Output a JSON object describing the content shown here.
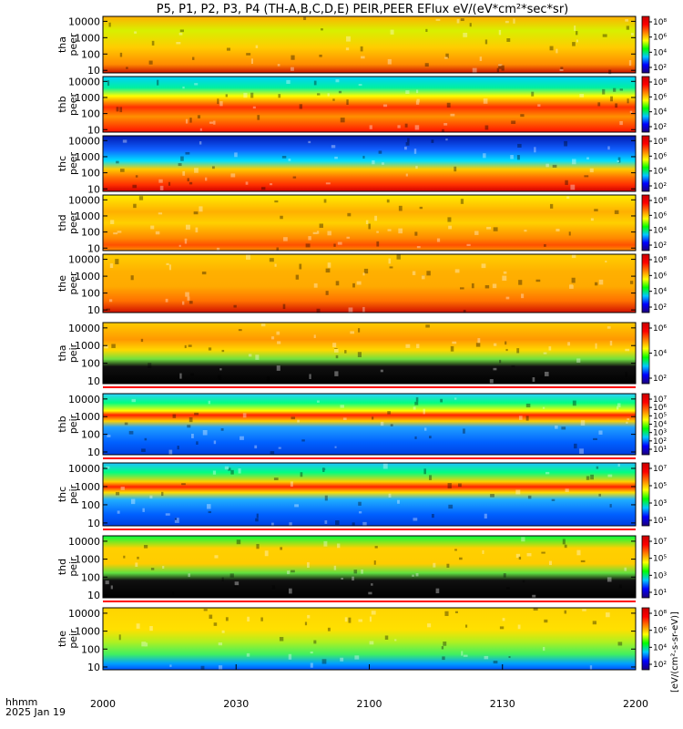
{
  "chart_data": {
    "type": "heatmap",
    "title": "P5, P1, P2, P3, P4 (TH-A,B,C,D,E) PEIR,PEER EFlux eV/(eV*cm²*sec*sr)",
    "x_axis": {
      "type": "time",
      "ticks": [
        "2000",
        "2030",
        "2100",
        "2130",
        "2200"
      ],
      "label_line1": "hhmm",
      "label_line2": "2025 Jan 19"
    },
    "y_axis": {
      "scale": "log",
      "unit": "eV",
      "ticks": [
        "10",
        "100",
        "1000",
        "10000"
      ],
      "range": [
        7,
        20000
      ]
    },
    "colorbar_label": "[eV/(cm²-s-sr-eV)]",
    "colormap": [
      "#000000",
      "#1e0078",
      "#0000ff",
      "#00c8ff",
      "#00ff00",
      "#ffff00",
      "#ff7f00",
      "#ff0000",
      "#c80000"
    ],
    "panels": [
      {
        "probe": "tha",
        "species": "peer",
        "label_line1": "tha",
        "label_line2": "peer",
        "cbar_ticks": [
          "10²",
          "10⁴",
          "10⁶",
          "10⁸"
        ]
      },
      {
        "probe": "thb",
        "species": "peer",
        "label_line1": "thb",
        "label_line2": "peer",
        "cbar_ticks": [
          "10²",
          "10⁴",
          "10⁶",
          "10⁸"
        ]
      },
      {
        "probe": "thc",
        "species": "peer",
        "label_line1": "thc",
        "label_line2": "peer",
        "cbar_ticks": [
          "10²",
          "10⁴",
          "10⁶",
          "10⁸"
        ]
      },
      {
        "probe": "thd",
        "species": "peer",
        "label_line1": "thd",
        "label_line2": "peer",
        "cbar_ticks": [
          "10²",
          "10⁴",
          "10⁶",
          "10⁸"
        ]
      },
      {
        "probe": "the",
        "species": "peer",
        "label_line1": "the",
        "label_line2": "peer",
        "cbar_ticks": [
          "10²",
          "10⁴",
          "10⁶",
          "10⁸"
        ]
      },
      {
        "probe": "tha",
        "species": "peir",
        "label_line1": "tha",
        "label_line2": "peir",
        "cbar_ticks": [
          "10²",
          "10⁴",
          "10⁶"
        ]
      },
      {
        "probe": "thb",
        "species": "peir",
        "label_line1": "thb",
        "label_line2": "peir",
        "cbar_ticks": [
          "10¹",
          "10²",
          "10³",
          "10⁴",
          "10⁵",
          "10⁶",
          "10⁷"
        ]
      },
      {
        "probe": "thc",
        "species": "peir",
        "label_line1": "thc",
        "label_line2": "peir",
        "cbar_ticks": [
          "10¹",
          "10³",
          "10⁵",
          "10⁷"
        ]
      },
      {
        "probe": "thd",
        "species": "peir",
        "label_line1": "thd",
        "label_line2": "peir",
        "cbar_ticks": [
          "10¹",
          "10³",
          "10⁵",
          "10⁷"
        ]
      },
      {
        "probe": "the",
        "species": "peir",
        "label_line1": "the",
        "label_line2": "peir",
        "cbar_ticks": [
          "10²",
          "10⁴",
          "10⁶",
          "10⁸"
        ]
      }
    ]
  }
}
